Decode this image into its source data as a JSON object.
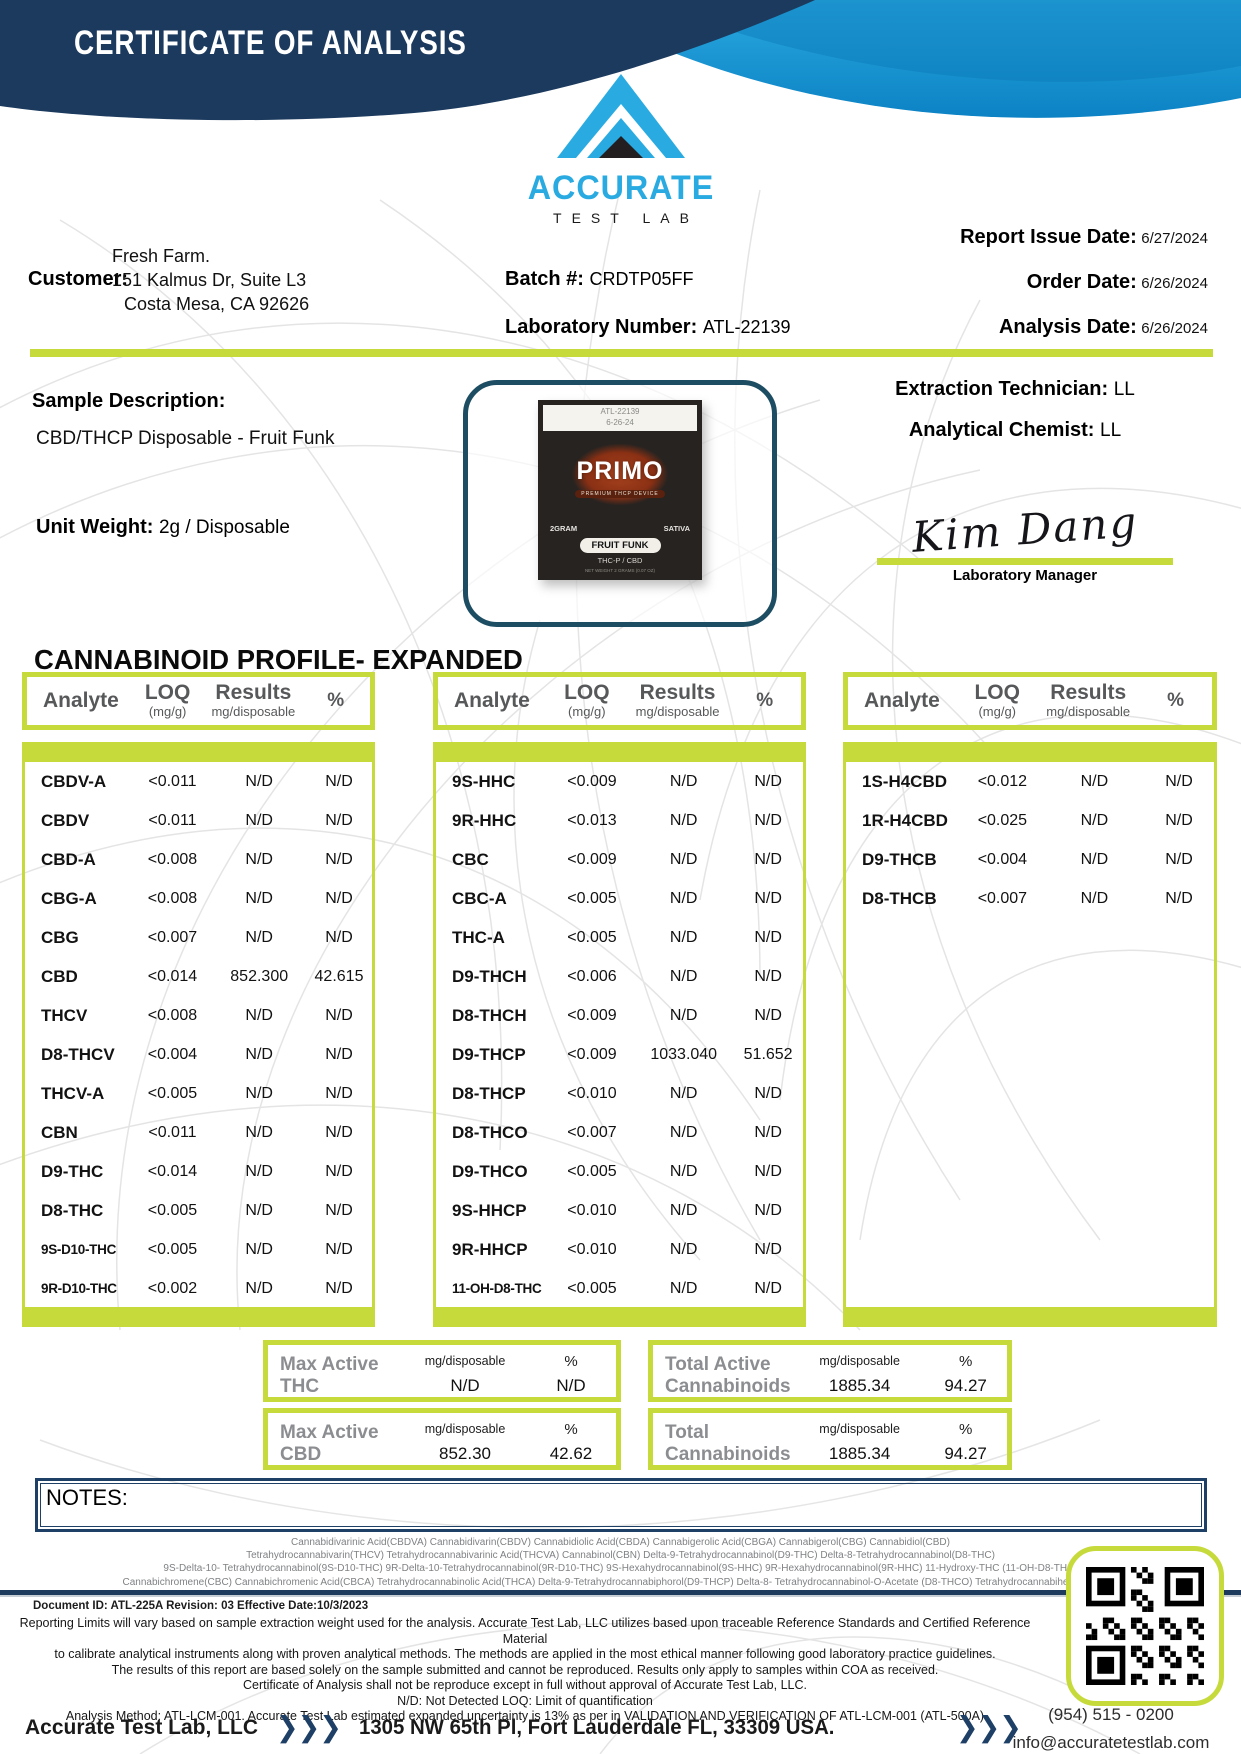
{
  "colors": {
    "navy": "#1c3a5e",
    "blue": "#0f8ed2",
    "cyan": "#29abe2",
    "lime": "#c6da3b"
  },
  "header": {
    "title": "CERTIFICATE OF ANALYSIS",
    "brand": "ACCURATE",
    "brand_sub": "TEST LAB"
  },
  "info": {
    "customer_label": "Customer:",
    "customer_name": "Fresh Farm.",
    "customer_address1": "151 Kalmus Dr, Suite L3",
    "customer_address2": "Costa Mesa, CA 92626",
    "batch_label": "Batch #:",
    "batch_value": "CRDTP05FF",
    "lab_number_label": "Laboratory Number:",
    "lab_number_value": "ATL-22139",
    "report_issue_date_label": "Report Issue Date:",
    "report_issue_date": "6/27/2024",
    "order_date_label": "Order Date:",
    "order_date": "6/26/2024",
    "analysis_date_label": "Analysis Date:",
    "analysis_date": "6/26/2024"
  },
  "sample": {
    "description_label": "Sample Description:",
    "description": "CBD/THCP Disposable  - Fruit Funk",
    "unit_weight_label": "Unit Weight:",
    "unit_weight": "2g / Disposable",
    "extraction_technician_label": "Extraction Technician:",
    "extraction_technician": "LL",
    "analytical_chemist_label": "Analytical Chemist:",
    "analytical_chemist": "LL",
    "signature": "Kim Dang",
    "signature_title": "Laboratory Manager"
  },
  "product": {
    "tag_line1": "ATL-22139",
    "tag_line2": "6-26-24",
    "brand": "PRIMO",
    "banner": "PREMIUM THCP DEVICE",
    "weight": "2GRAM",
    "strain": "SATIVA",
    "flavor": "FRUIT FUNK",
    "blend": "THC-P / CBD"
  },
  "profile": {
    "title": "CANNABINOID PROFILE- EXPANDED",
    "header": {
      "analyte": "Analyte",
      "loq": "LOQ",
      "loq_unit": "(mg/g)",
      "results": "Results",
      "results_unit": "mg/disposable",
      "percent": "%"
    },
    "tables": [
      [
        [
          "CBDV-A",
          "<0.011",
          "N/D",
          "N/D"
        ],
        [
          "CBDV",
          "<0.011",
          "N/D",
          "N/D"
        ],
        [
          "CBD-A",
          "<0.008",
          "N/D",
          "N/D"
        ],
        [
          "CBG-A",
          "<0.008",
          "N/D",
          "N/D"
        ],
        [
          "CBG",
          "<0.007",
          "N/D",
          "N/D"
        ],
        [
          "CBD",
          "<0.014",
          "852.300",
          "42.615"
        ],
        [
          "THCV",
          "<0.008",
          "N/D",
          "N/D"
        ],
        [
          "D8-THCV",
          "<0.004",
          "N/D",
          "N/D"
        ],
        [
          "THCV-A",
          "<0.005",
          "N/D",
          "N/D"
        ],
        [
          "CBN",
          "<0.011",
          "N/D",
          "N/D"
        ],
        [
          "D9-THC",
          "<0.014",
          "N/D",
          "N/D"
        ],
        [
          "D8-THC",
          "<0.005",
          "N/D",
          "N/D"
        ],
        [
          "9S-D10-THC",
          "<0.005",
          "N/D",
          "N/D"
        ],
        [
          "9R-D10-THC",
          "<0.002",
          "N/D",
          "N/D"
        ]
      ],
      [
        [
          "9S-HHC",
          "<0.009",
          "N/D",
          "N/D"
        ],
        [
          "9R-HHC",
          "<0.013",
          "N/D",
          "N/D"
        ],
        [
          "CBC",
          "<0.009",
          "N/D",
          "N/D"
        ],
        [
          "CBC-A",
          "<0.005",
          "N/D",
          "N/D"
        ],
        [
          "THC-A",
          "<0.005",
          "N/D",
          "N/D"
        ],
        [
          "D9-THCH",
          "<0.006",
          "N/D",
          "N/D"
        ],
        [
          "D8-THCH",
          "<0.009",
          "N/D",
          "N/D"
        ],
        [
          "D9-THCP",
          "<0.009",
          "1033.040",
          "51.652"
        ],
        [
          "D8-THCP",
          "<0.010",
          "N/D",
          "N/D"
        ],
        [
          "D8-THCO",
          "<0.007",
          "N/D",
          "N/D"
        ],
        [
          "D9-THCO",
          "<0.005",
          "N/D",
          "N/D"
        ],
        [
          "9S-HHCP",
          "<0.010",
          "N/D",
          "N/D"
        ],
        [
          "9R-HHCP",
          "<0.010",
          "N/D",
          "N/D"
        ],
        [
          "11-OH-D8-THC",
          "<0.005",
          "N/D",
          "N/D"
        ]
      ],
      [
        [
          "1S-H4CBD",
          "<0.012",
          "N/D",
          "N/D"
        ],
        [
          "1R-H4CBD",
          "<0.025",
          "N/D",
          "N/D"
        ],
        [
          "D9-THCB",
          "<0.004",
          "N/D",
          "N/D"
        ],
        [
          "D8-THCB",
          "<0.007",
          "N/D",
          "N/D"
        ]
      ]
    ]
  },
  "summary": {
    "boxes": [
      {
        "label": "Max Active THC",
        "unit": "mg/disposable",
        "percent_sign": "%",
        "mg": "N/D",
        "percent": "N/D"
      },
      {
        "label": "Max Active CBD",
        "unit": "mg/disposable",
        "percent_sign": "%",
        "mg": "852.30",
        "percent": "42.62"
      },
      {
        "label": "Total Active Cannabinoids",
        "unit": "mg/disposable",
        "percent_sign": "%",
        "mg": "1885.34",
        "percent": "94.27"
      },
      {
        "label": "Total Cannabinoids",
        "unit": "mg/disposable",
        "percent_sign": "%",
        "mg": "1885.34",
        "percent": "94.27"
      }
    ]
  },
  "notes_label": "NOTES:",
  "legend_lines": [
    "Cannabidivarinic Acid(CBDVA)  Cannabidivarin(CBDV)  Cannabidiolic Acid(CBDA)  Cannabigerolic Acid(CBGA)  Cannabigerol(CBG)  Cannabidiol(CBD)",
    "Tetrahydrocannabivarin(THCV)  Tetrahydrocannabivarinic Acid(THCVA)  Cannabinol(CBN)  Delta-9-Tetrahydrocannabinol(D9-THC)  Delta-8-Tetrahydrocannabinol(D8-THC)",
    "9S-Delta-10- Tetrahydrocannabinol(9S-D10-THC)  9R-Delta-10-Tetrahydrocannabinol(9R-D10-THC)  9S-Hexahydrocannabinol(9S-HHC)  9R-Hexahydrocannabinol(9R-HHC)  11-Hydroxy-THC (11-OH-D8-THC)",
    "Cannabichromene(CBC)  Cannabichromenic Acid(CBCA)  Tetrahydrocannabinolic Acid(THCA)  Delta-9-Tetrahydrocannabiphorol(D9-THCP) Delta-8- Tetrahydrocannabinol-O-Acetate (D8-THCO) Tetrahydrocannabihexol (THCH)"
  ],
  "footer": {
    "document_meta": "Document ID: ATL-225A   Revision: 03   Effective Date:10/3/2023",
    "disclaimer_lines": [
      "Reporting Limits will vary based on sample extraction weight used for the analysis. Accurate Test Lab, LLC utilizes based upon traceable Reference Standards and Certified Reference Material",
      "to calibrate analytical instruments along with proven analytical methods. The methods are applied in the most ethical manner following good laboratory practice guidelines.",
      "The results of this report are based solely on the sample submitted and cannot be reproduced. Results only apply to samples within COA as received.",
      "Certificate of Analysis shall not be reproduce except in full without approval of Accurate Test Lab, LLC.",
      "N/D: Not Detected   LOQ: Limit of quantification",
      "Analysis Method: ATL-LCM-001.   Accurate Test Lab estimated expanded uncertainty is 13% as per in VALIDATION AND VERIFICATION OF ATL-LCM-001 (ATL-500A)"
    ],
    "company": "Accurate Test Lab, LLC",
    "address": "1305 NW 65th Pl, Fort Lauderdale FL, 33309 USA.",
    "phone": "(954) 515 - 0200",
    "email": "info@accuratetestlab.com"
  }
}
